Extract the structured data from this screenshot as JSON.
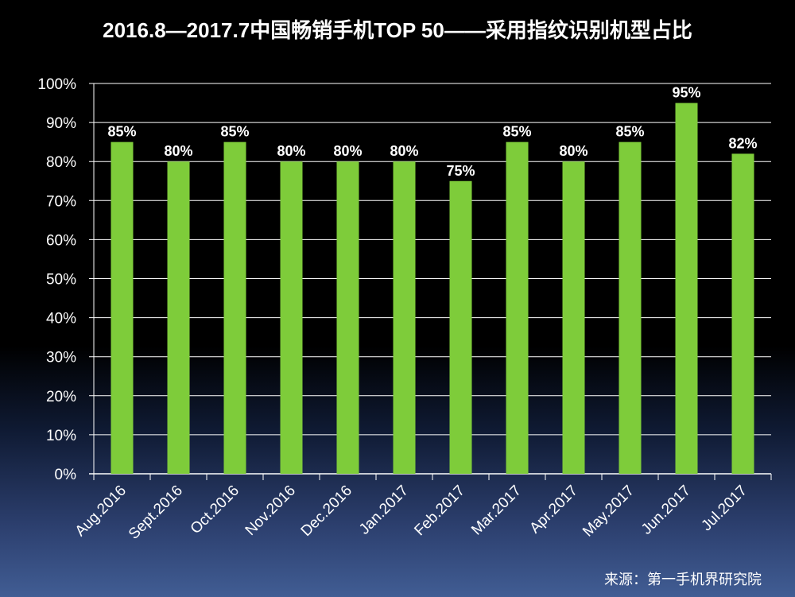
{
  "chart_data": {
    "type": "bar",
    "title": "2016.8—2017.7中国畅销手机TOP 50——采用指纹识别机型占比",
    "categories": [
      "Aug.2016",
      "Sept.2016",
      "Oct.2016",
      "Nov.2016",
      "Dec.2016",
      "Jan.2017",
      "Feb.2017",
      "Mar.2017",
      "Apr.2017",
      "May.2017",
      "Jun.2017",
      "Jul.2017"
    ],
    "values": [
      85,
      80,
      85,
      80,
      80,
      80,
      75,
      85,
      80,
      85,
      95,
      82
    ],
    "data_labels": [
      "85%",
      "80%",
      "85%",
      "80%",
      "80%",
      "80%",
      "75%",
      "85%",
      "80%",
      "85%",
      "95%",
      "82%"
    ],
    "y_tick_labels": [
      "0%",
      "10%",
      "20%",
      "30%",
      "40%",
      "50%",
      "60%",
      "70%",
      "80%",
      "90%",
      "100%"
    ],
    "ylim": [
      0,
      100
    ],
    "xlabel": "",
    "ylabel": "",
    "grid": true,
    "legend": "none",
    "colors": {
      "bar": "#7ecc3a",
      "grid": "#ffffff",
      "text": "#ffffff"
    }
  },
  "footer": {
    "source": "来源：第一手机界研究院"
  }
}
